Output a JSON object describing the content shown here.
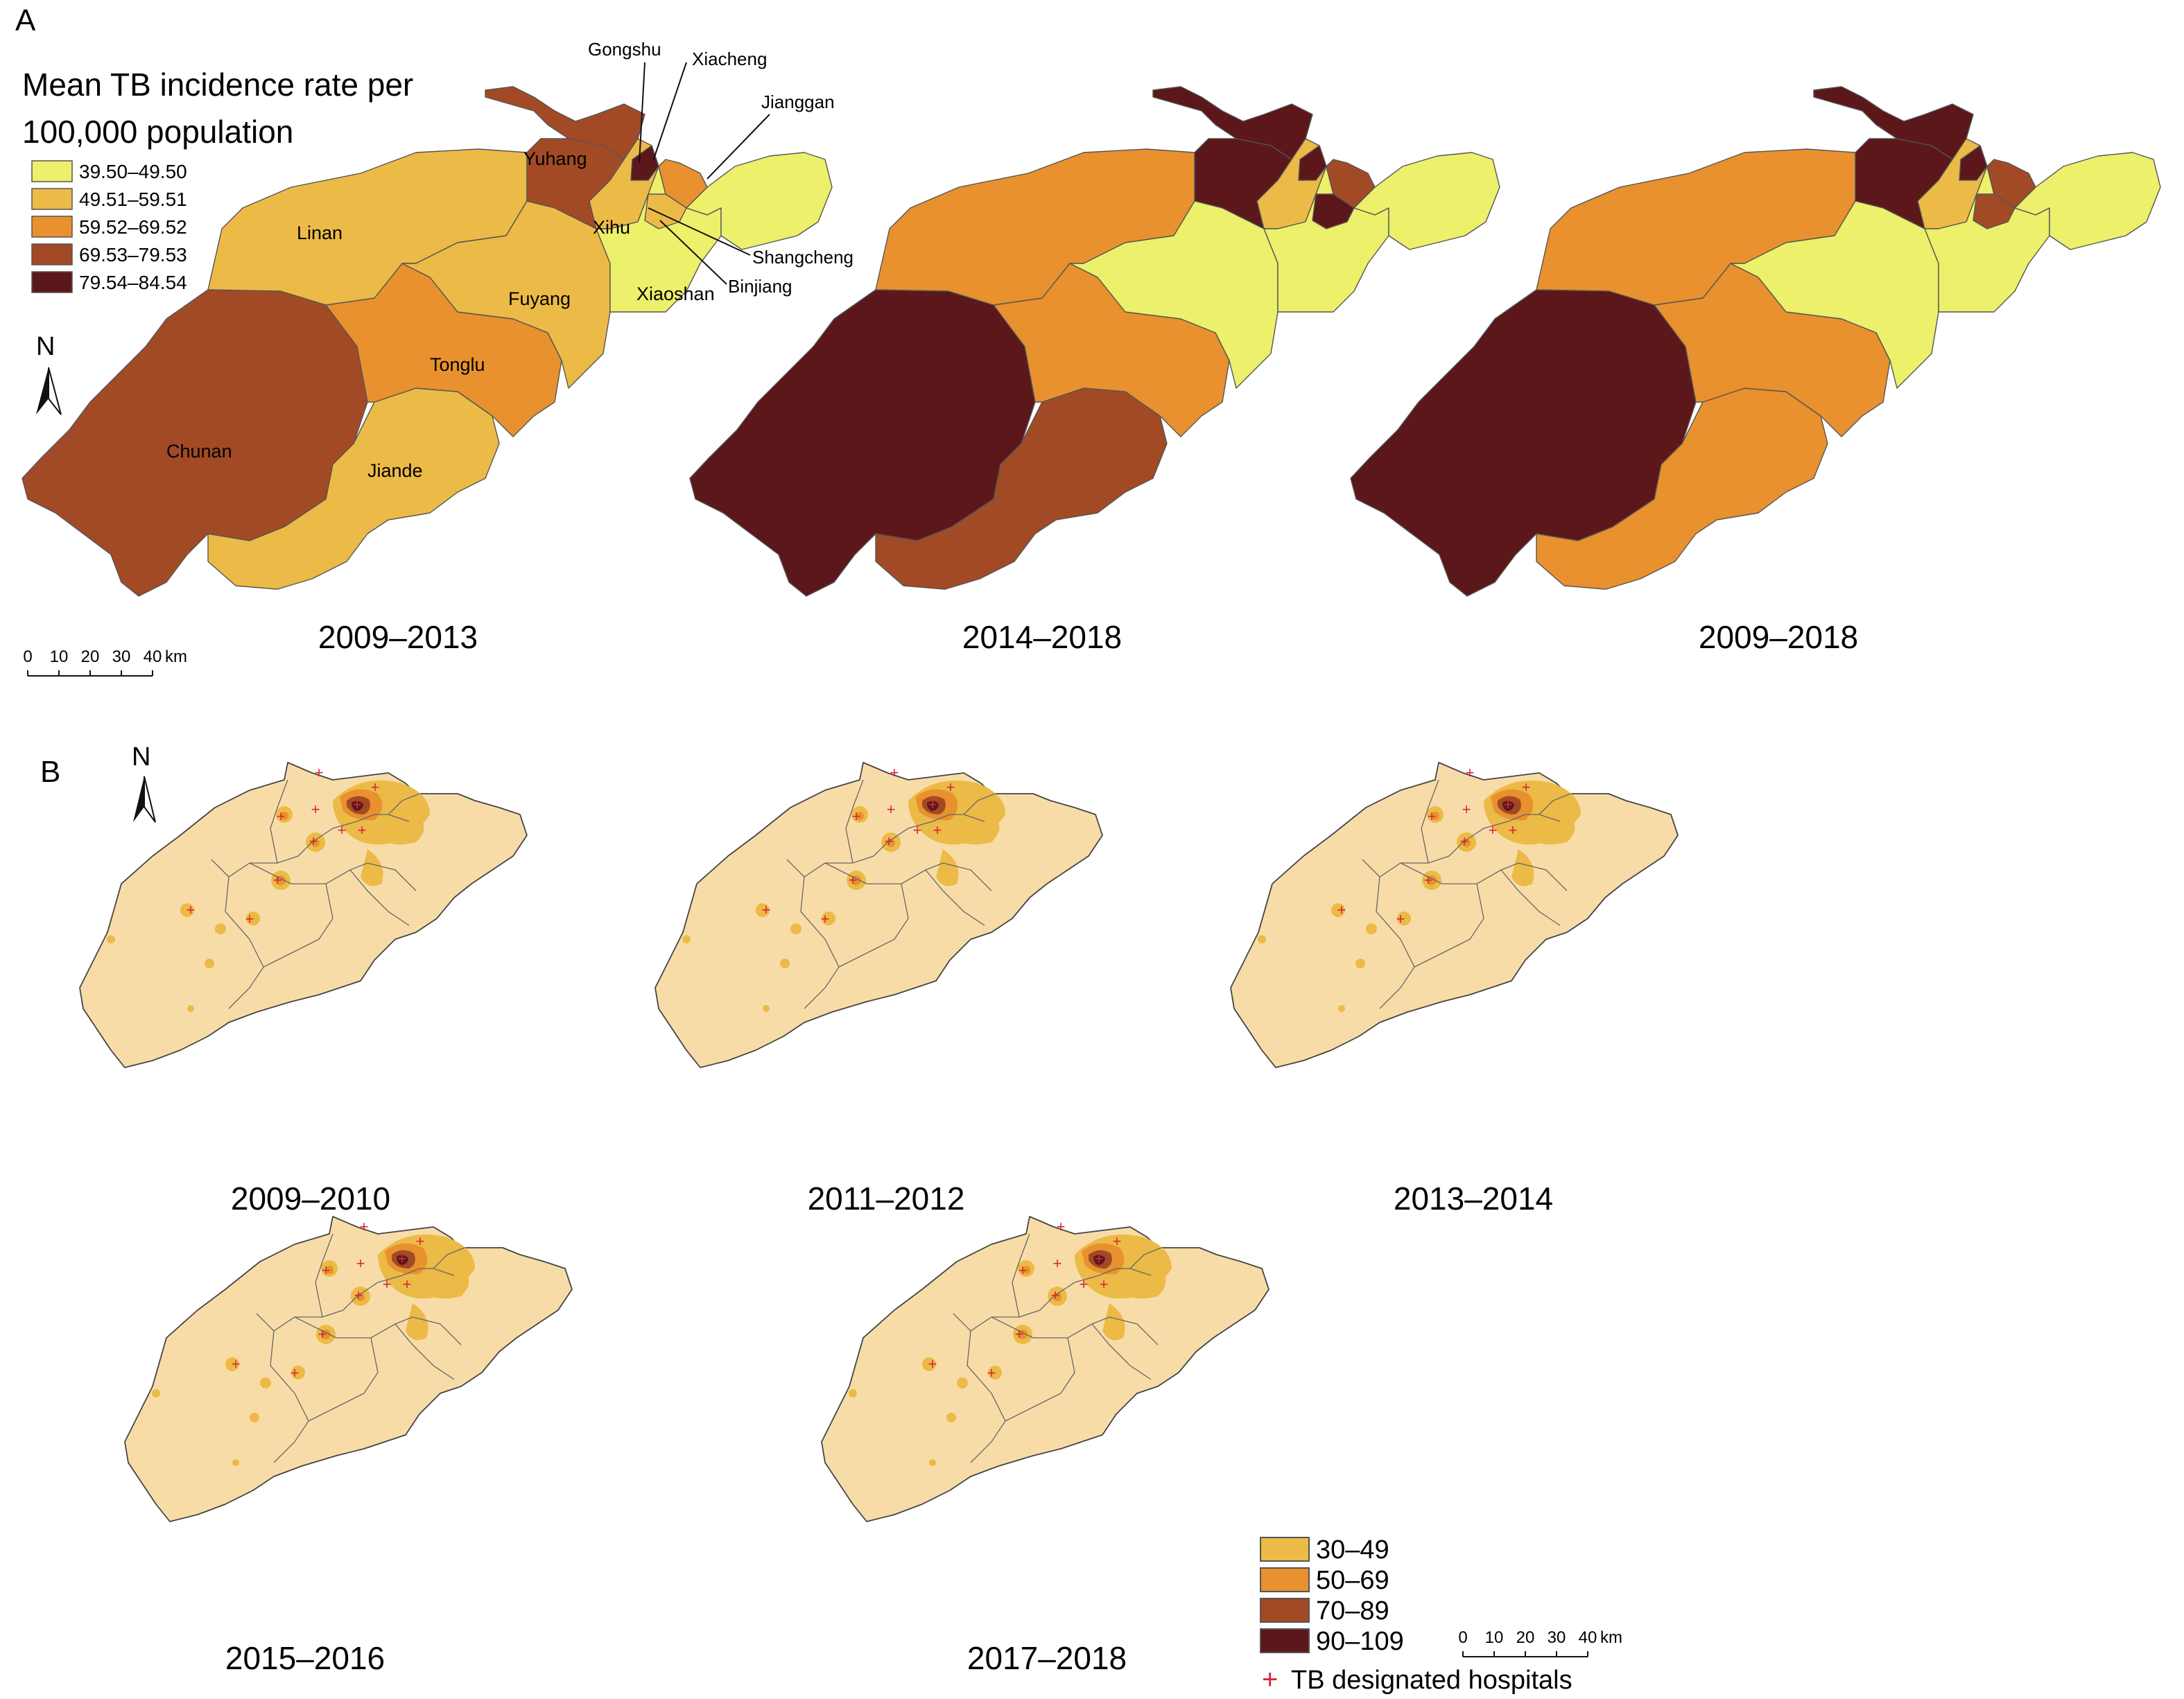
{
  "panel_a": {
    "letter": "A",
    "legend": {
      "title_line1": "Mean TB incidence rate per",
      "title_line2": "100,000 population",
      "classes": [
        {
          "label": "39.50–49.50",
          "color": "#ecf06a"
        },
        {
          "label": "49.51–59.51",
          "color": "#ecba46"
        },
        {
          "label": "59.52–69.52",
          "color": "#e8912e"
        },
        {
          "label": "69.53–79.53",
          "color": "#a24a26"
        },
        {
          "label": "79.54–84.54",
          "color": "#5c171b"
        }
      ]
    },
    "north_letter": "N",
    "district_names": {
      "linan": "Linan",
      "yuhang": "Yuhang",
      "xihu": "Xihu",
      "fuyang": "Fuyang",
      "xiaoshan": "Xiaoshan",
      "tonglu": "Tonglu",
      "chunan": "Chunan",
      "jiande": "Jiande",
      "gongshu": "Gongshu",
      "xiacheng": "Xiacheng",
      "jianggan": "Jianggan",
      "shangcheng": "Shangcheng",
      "binjiang": "Binjiang"
    },
    "periods": [
      "2009–2013",
      "2014–2018",
      "2009–2018"
    ],
    "maps": [
      {
        "chunan": "#a24a26",
        "jiande": "#ecba46",
        "tonglu": "#e8912e",
        "fuyang": "#ecba46",
        "linan": "#ecba46",
        "yuhang": "#a24a26",
        "xihu": "#ecba46",
        "xiaoshan": "#ecf06a",
        "urban_west": "#5c171b",
        "urban_east": "#e8912e",
        "binjiang": "#ecba46",
        "jianggan": "#ecf06a"
      },
      {
        "chunan": "#5c171b",
        "jiande": "#a24a26",
        "tonglu": "#e8912e",
        "fuyang": "#ecf06a",
        "linan": "#e8912e",
        "yuhang": "#5c171b",
        "xihu": "#ecba46",
        "xiaoshan": "#ecf06a",
        "urban_west": "#5c171b",
        "urban_east": "#a24a26",
        "binjiang": "#5c171b",
        "jianggan": "#ecf06a"
      },
      {
        "chunan": "#5c171b",
        "jiande": "#e8912e",
        "tonglu": "#e8912e",
        "fuyang": "#ecf06a",
        "linan": "#e8912e",
        "yuhang": "#5c171b",
        "xihu": "#ecba46",
        "xiaoshan": "#ecf06a",
        "urban_west": "#5c171b",
        "urban_east": "#a24a26",
        "binjiang": "#a24a26",
        "jianggan": "#ecf06a"
      }
    ],
    "scale": {
      "ticks": [
        "0",
        "10",
        "20",
        "30",
        "40"
      ],
      "unit": "km"
    }
  },
  "panel_b": {
    "letter": "B",
    "north_letter": "N",
    "periods": [
      "2009–2010",
      "2011–2012",
      "2013–2014",
      "2015–2016",
      "2017–2018"
    ],
    "legend": {
      "classes": [
        {
          "label": "30–49",
          "color": "#ecba46"
        },
        {
          "label": "50–69",
          "color": "#e8912e"
        },
        {
          "label": "70–89",
          "color": "#a24a26"
        },
        {
          "label": "90–109",
          "color": "#5c171b"
        }
      ],
      "hospital_marker": "+",
      "hospital_label": "TB designated hospitals",
      "hospital_color": "#d9253a"
    },
    "base_color": "#f8dca8",
    "scale": {
      "ticks": [
        "0",
        "10",
        "20",
        "30",
        "40"
      ],
      "unit": "km"
    }
  }
}
